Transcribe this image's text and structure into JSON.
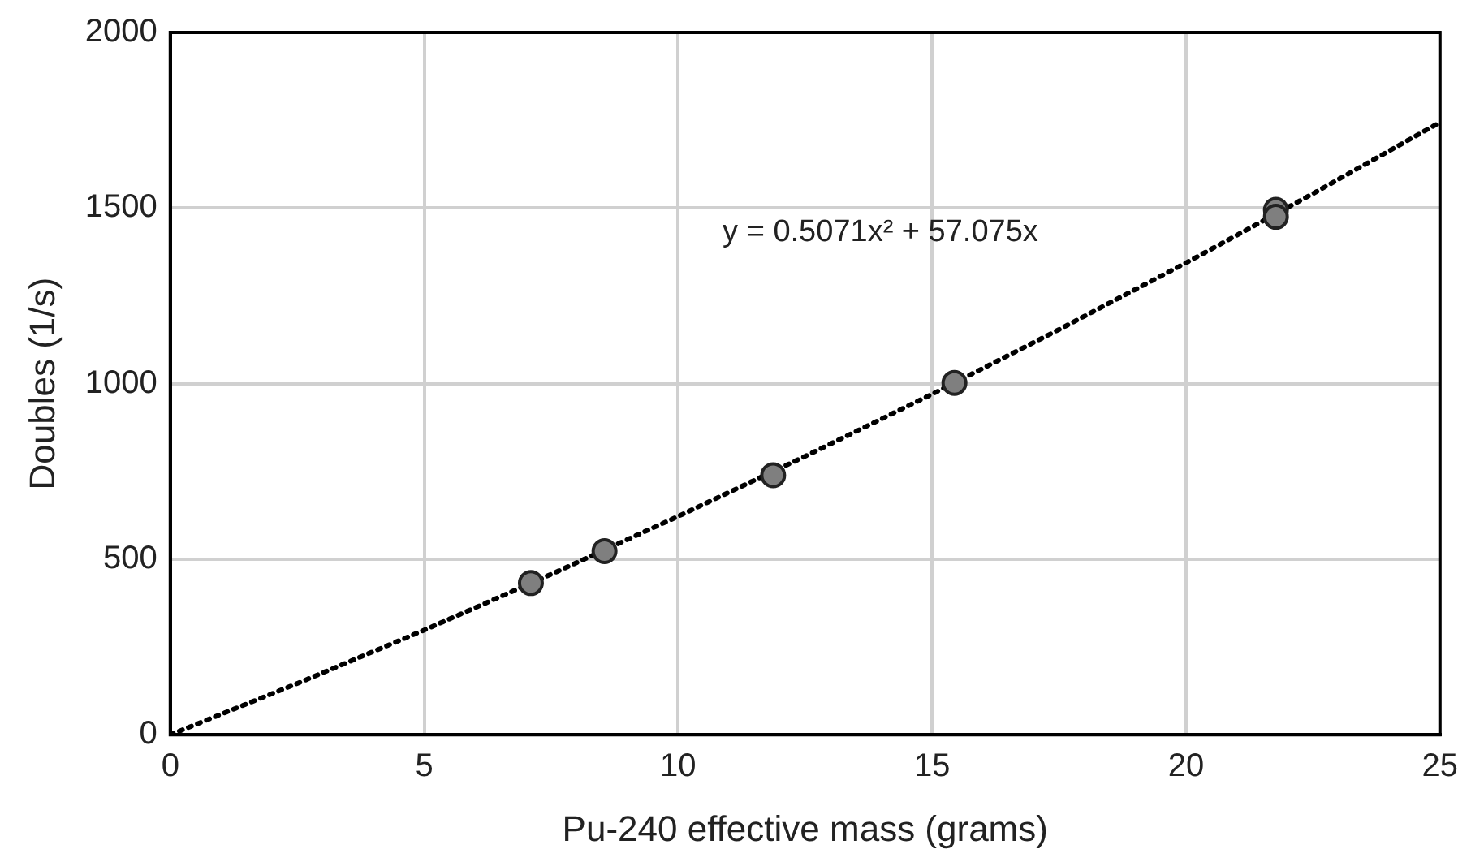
{
  "chart_data": {
    "type": "scatter",
    "xlabel": "Pu-240 effective mass (grams)",
    "ylabel": "Doubles (1/s)",
    "xlim": [
      0,
      25
    ],
    "xticks": [
      0,
      5,
      10,
      15,
      20,
      25
    ],
    "ylim": [
      0,
      2000
    ],
    "yticks": [
      0,
      500,
      1000,
      1500,
      2000
    ],
    "grid": true,
    "legend": false,
    "marker": "circle",
    "annotations": [
      "y = 0.5071x² + 57.075x"
    ],
    "series": [
      {
        "color": "#7f7f7f",
        "x": [
          7.1,
          8.55,
          11.87,
          15.44,
          21.77,
          21.77
        ],
        "values": [
          432,
          523,
          739,
          1002,
          1495,
          1475
        ]
      },
      {
        "type": "line",
        "color": "#000000",
        "marker": "none",
        "line_style": "dotted",
        "x": [
          0,
          2.5,
          5,
          7.5,
          10,
          12.5,
          15,
          17.5,
          20,
          22.5,
          25
        ],
        "values": [
          0,
          146,
          298,
          457,
          622,
          793,
          970,
          1154,
          1344,
          1541,
          1744
        ]
      }
    ]
  }
}
